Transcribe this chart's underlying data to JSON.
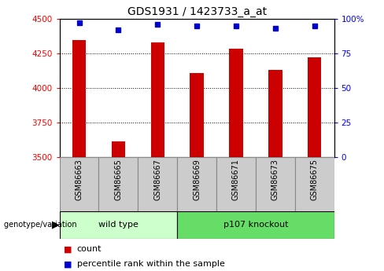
{
  "title": "GDS1931 / 1423733_a_at",
  "categories": [
    "GSM86663",
    "GSM86665",
    "GSM86667",
    "GSM86669",
    "GSM86671",
    "GSM86673",
    "GSM86675"
  ],
  "count_values": [
    4350,
    3615,
    4330,
    4110,
    4285,
    4130,
    4220
  ],
  "percentile_values": [
    97,
    92,
    96,
    95,
    95,
    93,
    95
  ],
  "ylim_left": [
    3500,
    4500
  ],
  "ylim_right": [
    0,
    100
  ],
  "yticks_left": [
    3500,
    3750,
    4000,
    4250,
    4500
  ],
  "yticks_right": [
    0,
    25,
    50,
    75,
    100
  ],
  "bar_color": "#cc0000",
  "dot_color": "#0000cc",
  "wild_type_indices": [
    0,
    1,
    2
  ],
  "knockout_indices": [
    3,
    4,
    5,
    6
  ],
  "wild_type_label": "wild type",
  "knockout_label": "p107 knockout",
  "wild_type_color": "#ccffcc",
  "knockout_color": "#66dd66",
  "group_label": "genotype/variation",
  "legend_count_label": "count",
  "legend_percentile_label": "percentile rank within the sample",
  "title_fontsize": 10,
  "tick_fontsize": 7.5,
  "label_fontsize": 7,
  "group_fontsize": 8,
  "legend_fontsize": 8,
  "bar_width": 0.35,
  "xlim": [
    -0.5,
    6.5
  ],
  "sample_cell_color": "#cccccc",
  "sample_cell_edge": "#888888"
}
